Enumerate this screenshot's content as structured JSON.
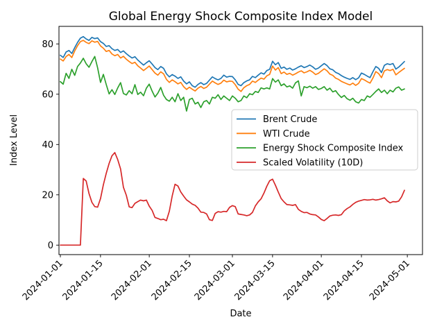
{
  "chart_data": {
    "type": "line",
    "title": "Global Energy Shock Composite Index Model",
    "xlabel": "Date",
    "ylabel": "Index Level",
    "x_start_date": "2024-01-01",
    "x_end_date": "2024-04-30",
    "x_frequency": "daily",
    "n_points": 121,
    "x_tick_labels": [
      "2024-01-01",
      "2024-01-15",
      "2024-02-01",
      "2024-02-15",
      "2024-03-01",
      "2024-03-15",
      "2024-04-01",
      "2024-04-15",
      "2024-05-01"
    ],
    "y_ticks": [
      0,
      20,
      40,
      60,
      80
    ],
    "ylim": [
      -4.1,
      87.2
    ],
    "grid": false,
    "legend_position": "center right",
    "background_color": "#ffffff",
    "series": [
      {
        "name": "Brent Crude",
        "color": "#1f77b4",
        "values": [
          75.5,
          74.6,
          76.8,
          77.4,
          76.2,
          78.5,
          80.6,
          82.3,
          82.9,
          82.0,
          81.4,
          82.6,
          82.1,
          82.4,
          80.9,
          80.2,
          79.0,
          79.3,
          78.1,
          77.4,
          77.8,
          76.6,
          77.2,
          76.1,
          75.2,
          74.4,
          74.9,
          73.6,
          72.6,
          71.6,
          72.5,
          73.3,
          72.0,
          70.6,
          69.8,
          71.0,
          70.3,
          68.1,
          66.9,
          67.8,
          67.2,
          66.3,
          66.9,
          65.2,
          64.1,
          64.9,
          63.4,
          62.8,
          63.9,
          64.6,
          63.8,
          64.3,
          65.6,
          66.9,
          66.2,
          65.7,
          66.3,
          67.6,
          66.8,
          67.1,
          67.0,
          65.7,
          63.9,
          63.4,
          64.6,
          65.3,
          65.7,
          67.1,
          66.6,
          67.6,
          68.5,
          68.0,
          69.4,
          69.9,
          73.1,
          71.7,
          72.6,
          70.3,
          70.8,
          69.9,
          70.4,
          69.6,
          70.1,
          70.8,
          71.3,
          70.6,
          71.0,
          71.6,
          70.9,
          69.9,
          70.4,
          71.3,
          72.2,
          71.4,
          70.1,
          69.7,
          68.7,
          68.2,
          67.4,
          66.8,
          66.3,
          65.9,
          66.6,
          65.8,
          66.5,
          68.4,
          67.9,
          67.2,
          66.6,
          68.9,
          71.0,
          70.3,
          68.6,
          71.5,
          72.1,
          71.8,
          72.2,
          70.0,
          70.8,
          71.9,
          73.0
        ]
      },
      {
        "name": "WTI Crude",
        "color": "#ff7f0e",
        "values": [
          74.0,
          73.2,
          75.0,
          75.8,
          74.6,
          77.2,
          79.3,
          80.9,
          81.4,
          80.6,
          80.1,
          81.2,
          80.7,
          81.0,
          79.2,
          78.3,
          77.0,
          77.4,
          76.0,
          75.3,
          75.8,
          74.4,
          75.1,
          73.9,
          73.0,
          72.2,
          72.7,
          71.3,
          70.4,
          69.4,
          70.3,
          71.2,
          69.8,
          68.4,
          67.6,
          68.9,
          68.1,
          65.9,
          64.7,
          65.7,
          65.0,
          64.1,
          64.7,
          63.0,
          61.9,
          62.8,
          62.0,
          61.3,
          62.4,
          63.1,
          62.3,
          62.8,
          64.0,
          65.2,
          64.5,
          63.9,
          64.4,
          65.6,
          64.9,
          65.2,
          65.1,
          63.8,
          62.0,
          61.1,
          62.6,
          63.4,
          63.9,
          65.2,
          64.7,
          65.6,
          66.4,
          66.0,
          67.3,
          67.9,
          71.2,
          69.6,
          70.6,
          68.2,
          68.8,
          67.9,
          68.3,
          67.6,
          68.1,
          68.8,
          69.3,
          68.5,
          68.9,
          69.5,
          68.8,
          67.8,
          68.3,
          69.2,
          70.1,
          69.3,
          68.0,
          67.5,
          66.4,
          65.9,
          65.1,
          64.6,
          64.1,
          63.7,
          64.4,
          63.5,
          64.3,
          66.2,
          65.7,
          65.0,
          64.4,
          66.4,
          69.0,
          68.2,
          66.6,
          69.3,
          69.8,
          69.4,
          69.9,
          67.7,
          68.6,
          69.5,
          70.3
        ]
      },
      {
        "name": "Energy Shock Composite Index",
        "color": "#2ca02c",
        "values": [
          65.0,
          64.0,
          68.3,
          66.3,
          69.9,
          67.5,
          71.0,
          72.4,
          74.3,
          72.1,
          70.7,
          73.0,
          75.0,
          70.5,
          64.7,
          67.9,
          63.9,
          60.1,
          61.8,
          59.9,
          62.5,
          64.6,
          60.3,
          59.7,
          61.4,
          60.2,
          63.8,
          59.9,
          60.8,
          59.4,
          62.4,
          64.0,
          61.2,
          58.9,
          60.4,
          62.7,
          59.6,
          57.9,
          57.2,
          58.8,
          57.0,
          60.2,
          57.5,
          58.8,
          53.3,
          57.9,
          58.4,
          56.1,
          56.8,
          54.7,
          57.0,
          57.5,
          56.1,
          58.8,
          58.4,
          59.8,
          57.9,
          59.3,
          58.4,
          57.5,
          59.3,
          58.4,
          57.0,
          57.5,
          59.3,
          58.6,
          60.2,
          59.8,
          61.1,
          60.7,
          62.5,
          62.1,
          62.5,
          62.1,
          66.2,
          64.8,
          65.7,
          63.4,
          64.1,
          62.9,
          63.3,
          62.4,
          64.5,
          65.3,
          59.3,
          63.0,
          62.6,
          63.2,
          62.4,
          63.0,
          61.9,
          62.3,
          63.0,
          61.6,
          62.4,
          60.9,
          61.4,
          59.9,
          58.7,
          59.5,
          58.2,
          57.6,
          58.4,
          57.0,
          56.5,
          57.9,
          57.5,
          59.3,
          58.8,
          59.9,
          61.1,
          62.1,
          60.7,
          61.6,
          60.2,
          61.6,
          60.9,
          62.4,
          62.9,
          61.6,
          62.1
        ]
      },
      {
        "name": "Scaled Volatility (10D)",
        "color": "#d62728",
        "values": [
          0,
          0,
          0,
          0,
          0,
          0,
          0,
          0,
          26.5,
          25.5,
          20.5,
          17.0,
          15.3,
          15.1,
          18.5,
          24.0,
          28.5,
          32.5,
          35.5,
          36.8,
          34.0,
          30.3,
          23.0,
          19.8,
          15.2,
          14.9,
          16.6,
          17.3,
          17.9,
          17.6,
          17.9,
          15.5,
          13.8,
          11.0,
          10.6,
          10.1,
          10.3,
          9.7,
          13.5,
          19.5,
          24.2,
          23.5,
          21.1,
          19.5,
          18.0,
          17.2,
          16.3,
          15.8,
          14.7,
          13.1,
          13.0,
          12.4,
          10.1,
          9.8,
          12.6,
          13.3,
          13.1,
          13.4,
          13.3,
          15.0,
          15.7,
          15.3,
          12.4,
          12.2,
          12.0,
          11.7,
          12.0,
          13.0,
          15.6,
          17.2,
          18.4,
          20.7,
          23.4,
          25.6,
          26.2,
          23.8,
          21.1,
          18.5,
          17.2,
          16.1,
          16.0,
          15.8,
          16.1,
          14.2,
          13.4,
          12.9,
          13.0,
          12.4,
          12.1,
          12.0,
          11.2,
          10.2,
          9.7,
          10.6,
          11.6,
          11.9,
          12.0,
          11.8,
          12.1,
          13.6,
          14.5,
          15.2,
          16.2,
          17.0,
          17.5,
          17.8,
          18.1,
          17.9,
          18.0,
          18.2,
          17.9,
          18.1,
          18.4,
          18.8,
          17.6,
          16.8,
          17.3,
          17.2,
          17.5,
          19.2,
          21.8
        ]
      }
    ]
  }
}
